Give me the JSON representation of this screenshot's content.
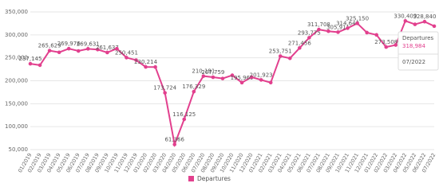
{
  "chart_data": {
    "type": "line",
    "categories": [
      "01/2019",
      "02/2019",
      "03/2019",
      "04/2019",
      "05/2019",
      "06/2019",
      "07/2019",
      "08/2019",
      "09/2019",
      "10/2019",
      "11/2019",
      "12/2019",
      "01/2020",
      "02/2020",
      "03/2020",
      "04/2020",
      "05/2020",
      "06/2020",
      "07/2020",
      "08/2020",
      "09/2020",
      "10/2020",
      "11/2020",
      "12/2020",
      "01/2021",
      "02/2021",
      "03/2021",
      "04/2021",
      "05/2021",
      "06/2021",
      "07/2021",
      "08/2021",
      "09/2021",
      "10/2021",
      "11/2021",
      "12/2021",
      "01/2022",
      "02/2022",
      "03/2022",
      "04/2022",
      "05/2022",
      "06/2022",
      "07/2022"
    ],
    "series": [
      {
        "name": "Departures",
        "color": "#e2408e",
        "values": [
          237145,
          234000,
          265629,
          262000,
          269976,
          265000,
          269631,
          268000,
          261637,
          270000,
          250451,
          245000,
          230214,
          230000,
          173724,
          61366,
          116125,
          176329,
          210191,
          207759,
          205000,
          212000,
          195969,
          208000,
          201923,
          196000,
          253751,
          249000,
          271456,
          293775,
          311708,
          308000,
          305911,
          314640,
          325150,
          305000,
          300000,
          273508,
          278000,
          330409,
          323000,
          328840,
          318984
        ],
        "value_labels": [
          "237,145",
          null,
          "265,629",
          null,
          "269,976",
          null,
          "269,631",
          null,
          "261,637",
          null,
          "250,451",
          null,
          "230,214",
          null,
          "173,724",
          "61,366",
          "116,125",
          "176,329",
          "210,191",
          "207,759",
          null,
          null,
          "195,969",
          null,
          "201,923",
          null,
          "253,751",
          null,
          "271,456",
          "293,775",
          "311,708",
          null,
          "305,911",
          "314,640",
          "325,150",
          null,
          null,
          "273,508",
          null,
          "330,409",
          null,
          "328,840",
          null
        ]
      }
    ],
    "ylim": [
      50000,
      350000
    ],
    "yticks": [
      {
        "value": 50000,
        "label": "50,000"
      },
      {
        "value": 100000,
        "label": "100,000"
      },
      {
        "value": 150000,
        "label": "150,000"
      },
      {
        "value": 200000,
        "label": "200,000"
      },
      {
        "value": 250000,
        "label": "250,000"
      },
      {
        "value": 300000,
        "label": "300,000"
      },
      {
        "value": 350000,
        "label": "350,000"
      }
    ],
    "grid": true,
    "tooltip": {
      "title": "Departures",
      "value": "318,984",
      "label": "07/2022"
    }
  }
}
